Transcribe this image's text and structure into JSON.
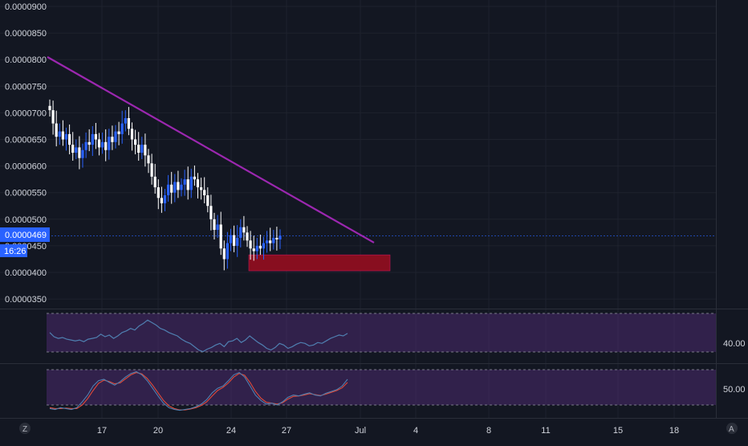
{
  "price_axis": {
    "labels": [
      "0.0000900",
      "0.0000850",
      "0.0000800",
      "0.0000750",
      "0.0000700",
      "0.0000650",
      "0.0000600",
      "0.0000550",
      "0.0000500",
      "0.0000450",
      "0.0000400",
      "0.0000350"
    ],
    "current_price": "0.0000469",
    "countdown": "16:26"
  },
  "time_axis": {
    "labels": [
      "17",
      "20",
      "24",
      "27",
      "Jul",
      "4",
      "8",
      "11",
      "15",
      "18"
    ]
  },
  "indicators": {
    "rsi_label": "40.00",
    "stoch_label": "50.00"
  },
  "corner": {
    "left_icon_label": "Z",
    "right_icon_label": "A"
  },
  "colors": {
    "background": "#131722",
    "grid": "#1e222d",
    "text": "#b2b5be",
    "trendline": "#9c27b0",
    "support_box": "#880e1f",
    "candle_up": "#2962ff",
    "candle_down": "#ffffff",
    "price_tag": "#2962ff",
    "indicator_band": "#4a2a6e",
    "rsi_line": "#4f7fb0",
    "stoch_k": "#4f7fb0",
    "stoch_d": "#e04a3a"
  },
  "chart_data": {
    "type": "candlestick",
    "y_unit": "price",
    "ylim": [
      3.25e-05,
      9.2e-05
    ],
    "x_tick_dates": [
      "17",
      "20",
      "24",
      "27",
      "Jul",
      "4",
      "8",
      "11",
      "15",
      "18"
    ],
    "trendline": {
      "from": [
        0,
        8.05e-05
      ],
      "to": [
        88,
        4.56e-05
      ]
    },
    "support_zone": {
      "x_from": 55,
      "x_to": 94,
      "low": 4.03e-05,
      "high": 4.33e-05
    },
    "closes": [
      7.05e-05,
      6.8e-05,
      6.55e-05,
      6.65e-05,
      6.5e-05,
      6.6e-05,
      6.4e-05,
      6.25e-05,
      6.35e-05,
      6.15e-05,
      6.3e-05,
      6.45e-05,
      6.4e-05,
      6.6e-05,
      6.5e-05,
      6.35e-05,
      6.45e-05,
      6.3e-05,
      6.55e-05,
      6.45e-05,
      6.65e-05,
      6.6e-05,
      6.8e-05,
      6.9e-05,
      6.7e-05,
      6.5e-05,
      6.4e-05,
      6.25e-05,
      6.4e-05,
      6.2e-05,
      6.05e-05,
      5.8e-05,
      5.6e-05,
      5.4e-05,
      5.3e-05,
      5.45e-05,
      5.65e-05,
      5.5e-05,
      5.7e-05,
      5.55e-05,
      5.65e-05,
      5.75e-05,
      5.55e-05,
      5.8e-05,
      5.75e-05,
      5.6e-05,
      5.55e-05,
      5.45e-05,
      5.25e-05,
      5e-05,
      4.8e-05,
      4.9e-05,
      4.45e-05,
      4.25e-05,
      4.55e-05,
      4.7e-05,
      4.5e-05,
      4.65e-05,
      4.85e-05,
      4.75e-05,
      4.6e-05,
      4.45e-05,
      4.4e-05,
      4.5e-05,
      4.45e-05,
      4.55e-05,
      4.6e-05,
      4.55e-05,
      4.65e-05,
      4.62e-05,
      4.69e-05
    ],
    "rsi": {
      "values": [
        55,
        50,
        48,
        49,
        47,
        46,
        45,
        46,
        44,
        47,
        48,
        49,
        53,
        50,
        52,
        48,
        51,
        55,
        57,
        60,
        58,
        63,
        66,
        70,
        67,
        64,
        60,
        58,
        55,
        53,
        51,
        47,
        44,
        42,
        38,
        34,
        32,
        35,
        37,
        40,
        42,
        38,
        44,
        45,
        48,
        43,
        46,
        51,
        47,
        43,
        40,
        36,
        34,
        37,
        42,
        40,
        36,
        38,
        41,
        43,
        42,
        39,
        40,
        43,
        42,
        45,
        48,
        50,
        52,
        51,
        54
      ],
      "ylim": [
        20,
        80
      ]
    },
    "stoch": {
      "k": [
        10,
        8,
        12,
        10,
        8,
        12,
        25,
        40,
        60,
        72,
        75,
        68,
        62,
        70,
        80,
        88,
        92,
        85,
        72,
        55,
        38,
        22,
        12,
        8,
        6,
        8,
        10,
        14,
        20,
        30,
        45,
        55,
        60,
        72,
        85,
        90,
        80,
        60,
        40,
        28,
        20,
        22,
        18,
        25,
        35,
        40,
        38,
        42,
        45,
        40,
        38,
        44,
        48,
        52,
        60,
        75
      ],
      "d": [
        12,
        10,
        10,
        11,
        10,
        10,
        18,
        32,
        50,
        66,
        73,
        70,
        65,
        67,
        76,
        85,
        90,
        87,
        77,
        62,
        45,
        28,
        16,
        10,
        7,
        7,
        9,
        12,
        17,
        25,
        38,
        50,
        57,
        67,
        80,
        88,
        84,
        68,
        48,
        33,
        24,
        22,
        20,
        23,
        31,
        37,
        38,
        40,
        43,
        41,
        39,
        42,
        46,
        50,
        56,
        68
      ],
      "ylim": [
        0,
        100
      ]
    }
  }
}
